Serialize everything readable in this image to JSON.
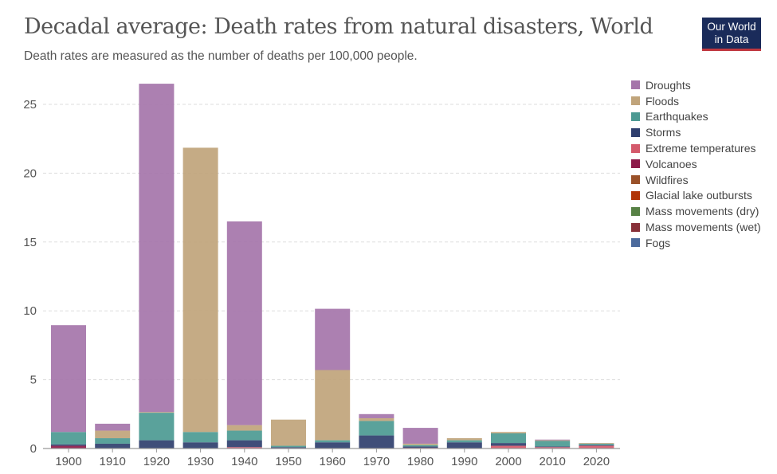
{
  "header": {
    "title": "Decadal average: Death rates from natural disasters, World",
    "subtitle": "Death rates are measured as the number of deaths per 100,000 people.",
    "logo_line1": "Our World",
    "logo_line2": "in Data"
  },
  "chart_data": {
    "type": "bar",
    "stacked": true,
    "title": "Decadal average: Death rates from natural disasters, World",
    "subtitle": "Death rates are measured as the number of deaths per 100,000 people.",
    "xlabel": "",
    "ylabel": "",
    "ylim": [
      0,
      27
    ],
    "yticks": [
      0,
      5,
      10,
      15,
      20,
      25
    ],
    "grid": true,
    "legend_position": "right",
    "categories": [
      "1900",
      "1910",
      "1920",
      "1930",
      "1940",
      "1950",
      "1960",
      "1970",
      "1980",
      "1990",
      "2000",
      "2010",
      "2020"
    ],
    "series": [
      {
        "name": "Fogs",
        "color": "#4c6a9c",
        "values": [
          0,
          0,
          0,
          0,
          0,
          0,
          0,
          0,
          0,
          0,
          0,
          0,
          0
        ]
      },
      {
        "name": "Mass movements (wet)",
        "color": "#883039",
        "values": [
          0,
          0,
          0,
          0,
          0,
          0,
          0,
          0,
          0,
          0,
          0,
          0,
          0
        ]
      },
      {
        "name": "Mass movements (dry)",
        "color": "#578145",
        "values": [
          0,
          0,
          0,
          0,
          0,
          0,
          0,
          0,
          0,
          0,
          0,
          0,
          0
        ]
      },
      {
        "name": "Glacial lake outbursts",
        "color": "#b13507",
        "values": [
          0,
          0,
          0,
          0,
          0,
          0,
          0,
          0,
          0,
          0,
          0,
          0,
          0
        ]
      },
      {
        "name": "Wildfires",
        "color": "#9a5129",
        "values": [
          0,
          0,
          0,
          0,
          0,
          0,
          0,
          0,
          0,
          0,
          0,
          0,
          0
        ]
      },
      {
        "name": "Volcanoes",
        "color": "#8c1b4a",
        "values": [
          0.2,
          0.0,
          0.0,
          0.0,
          0.0,
          0.0,
          0.0,
          0.0,
          0.0,
          0.0,
          0.0,
          0.0,
          0.0
        ]
      },
      {
        "name": "Extreme temperatures",
        "color": "#d4596b",
        "values": [
          0.0,
          0.0,
          0.0,
          0.0,
          0.1,
          0.0,
          0.0,
          0.0,
          0.05,
          0.0,
          0.2,
          0.1,
          0.2
        ]
      },
      {
        "name": "Storms",
        "color": "#2f3f6e",
        "values": [
          0.1,
          0.35,
          0.6,
          0.45,
          0.5,
          0.1,
          0.45,
          0.95,
          0.1,
          0.45,
          0.2,
          0.05,
          0.05
        ]
      },
      {
        "name": "Earthquakes",
        "color": "#4c9a93",
        "values": [
          0.9,
          0.4,
          2.0,
          0.75,
          0.7,
          0.1,
          0.15,
          1.05,
          0.1,
          0.15,
          0.7,
          0.4,
          0.1
        ]
      },
      {
        "name": "Floods",
        "color": "#c0a47b",
        "values": [
          0.0,
          0.55,
          0.05,
          20.65,
          0.4,
          1.9,
          5.1,
          0.2,
          0.1,
          0.15,
          0.1,
          0.05,
          0.05
        ]
      },
      {
        "name": "Droughts",
        "color": "#a575aa",
        "values": [
          7.76,
          0.5,
          23.85,
          0.0,
          14.8,
          0.0,
          4.45,
          0.3,
          1.15,
          0.0,
          0.0,
          0.05,
          0.0
        ]
      }
    ]
  },
  "legend": [
    {
      "label": "Droughts",
      "color": "#a575aa"
    },
    {
      "label": "Floods",
      "color": "#c0a47b"
    },
    {
      "label": "Earthquakes",
      "color": "#4c9a93"
    },
    {
      "label": "Storms",
      "color": "#2f3f6e"
    },
    {
      "label": "Extreme temperatures",
      "color": "#d4596b"
    },
    {
      "label": "Volcanoes",
      "color": "#8c1b4a"
    },
    {
      "label": "Wildfires",
      "color": "#9a5129"
    },
    {
      "label": "Glacial lake outbursts",
      "color": "#b13507"
    },
    {
      "label": "Mass movements (dry)",
      "color": "#578145"
    },
    {
      "label": "Mass movements (wet)",
      "color": "#883039"
    },
    {
      "label": "Fogs",
      "color": "#4c6a9c"
    }
  ]
}
